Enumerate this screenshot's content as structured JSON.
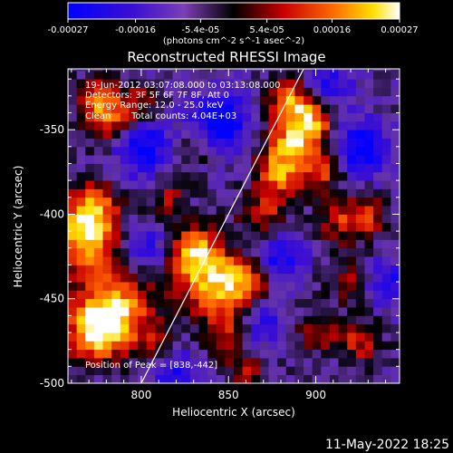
{
  "colorbar": {
    "tick_labels": [
      "-0.00027",
      "-0.00016",
      "-5.4e-05",
      "5.4e-05",
      "0.00016",
      "0.00027"
    ],
    "tick_values": [
      -0.00027,
      -0.00016,
      -5.4e-05,
      5.4e-05,
      0.00016,
      0.00027
    ],
    "range": [
      -0.00027,
      0.00027
    ],
    "unit_text": "(photons cm^-2 s^-1 asec^-2)"
  },
  "chart_data": {
    "type": "heatmap",
    "title": "Reconstructed RHESSI Image",
    "xlabel": "Heliocentric X (arcsec)",
    "ylabel": "Heliocentric Y (arcsec)",
    "xlim": [
      758,
      948
    ],
    "ylim": [
      -500,
      -314
    ],
    "x_ticks": [
      800,
      850,
      900
    ],
    "y_ticks": [
      -350,
      -400,
      -450,
      -500
    ],
    "colormap": "blue-purple-black-red-yellow-white",
    "limb_line": [
      [
        800,
        -500
      ],
      [
        893,
        -314
      ]
    ],
    "annotations": [
      "19-Jun-2012 03:07:08.000 to 03:13:08.000",
      "Detectors: 3F 5F 6F 7F 8F, Att 0",
      "Energy Range: 12.0 - 25.0 keV",
      "Clean",
      "Total counts: 4.04E+03"
    ],
    "peak_label": "Position of Peak = [838,-442]",
    "peak_position": [
      838,
      -442
    ],
    "blobs": [
      {
        "x": 768,
        "y": -415,
        "a": 1.0,
        "w": 14
      },
      {
        "x": 772,
        "y": -395,
        "a": 0.8,
        "w": 10
      },
      {
        "x": 785,
        "y": -455,
        "a": 1.0,
        "w": 16
      },
      {
        "x": 775,
        "y": -470,
        "a": 0.9,
        "w": 12
      },
      {
        "x": 782,
        "y": -345,
        "a": 0.8,
        "w": 10
      },
      {
        "x": 775,
        "y": -330,
        "a": 0.6,
        "w": 8
      },
      {
        "x": 800,
        "y": -335,
        "a": 0.5,
        "w": 8
      },
      {
        "x": 840,
        "y": -440,
        "a": 1.0,
        "w": 14
      },
      {
        "x": 830,
        "y": -420,
        "a": 0.8,
        "w": 10
      },
      {
        "x": 860,
        "y": -440,
        "a": 0.6,
        "w": 10
      },
      {
        "x": 850,
        "y": -470,
        "a": 0.5,
        "w": 10
      },
      {
        "x": 870,
        "y": -400,
        "a": 0.6,
        "w": 10
      },
      {
        "x": 880,
        "y": -375,
        "a": 0.8,
        "w": 10
      },
      {
        "x": 890,
        "y": -355,
        "a": 1.0,
        "w": 12
      },
      {
        "x": 885,
        "y": -330,
        "a": 0.8,
        "w": 9
      },
      {
        "x": 900,
        "y": -340,
        "a": 0.7,
        "w": 9
      },
      {
        "x": 905,
        "y": -375,
        "a": 0.6,
        "w": 8
      },
      {
        "x": 915,
        "y": -405,
        "a": 0.55,
        "w": 10
      },
      {
        "x": 930,
        "y": -400,
        "a": 0.55,
        "w": 8
      },
      {
        "x": 920,
        "y": -440,
        "a": 0.5,
        "w": 9
      },
      {
        "x": 925,
        "y": -475,
        "a": 0.6,
        "w": 9
      },
      {
        "x": 900,
        "y": -470,
        "a": 0.5,
        "w": 8
      },
      {
        "x": 815,
        "y": -390,
        "a": 0.45,
        "w": 8
      },
      {
        "x": 810,
        "y": -475,
        "a": 0.4,
        "w": 7
      },
      {
        "x": 860,
        "y": -495,
        "a": 0.5,
        "w": 8
      },
      {
        "x": 830,
        "y": -360,
        "a": 0.4,
        "w": 8
      },
      {
        "x": 800,
        "y": -360,
        "a": -0.8,
        "w": 12
      },
      {
        "x": 845,
        "y": -345,
        "a": -0.9,
        "w": 12
      },
      {
        "x": 905,
        "y": -325,
        "a": -0.7,
        "w": 10
      },
      {
        "x": 925,
        "y": -360,
        "a": -0.8,
        "w": 12
      },
      {
        "x": 880,
        "y": -425,
        "a": -0.7,
        "w": 10
      },
      {
        "x": 800,
        "y": -420,
        "a": -0.6,
        "w": 10
      },
      {
        "x": 820,
        "y": -495,
        "a": -0.6,
        "w": 10
      },
      {
        "x": 940,
        "y": -440,
        "a": -0.6,
        "w": 10
      },
      {
        "x": 870,
        "y": -465,
        "a": -0.6,
        "w": 9
      }
    ]
  },
  "footer": {
    "timestamp": "11-May-2022 18:25"
  }
}
